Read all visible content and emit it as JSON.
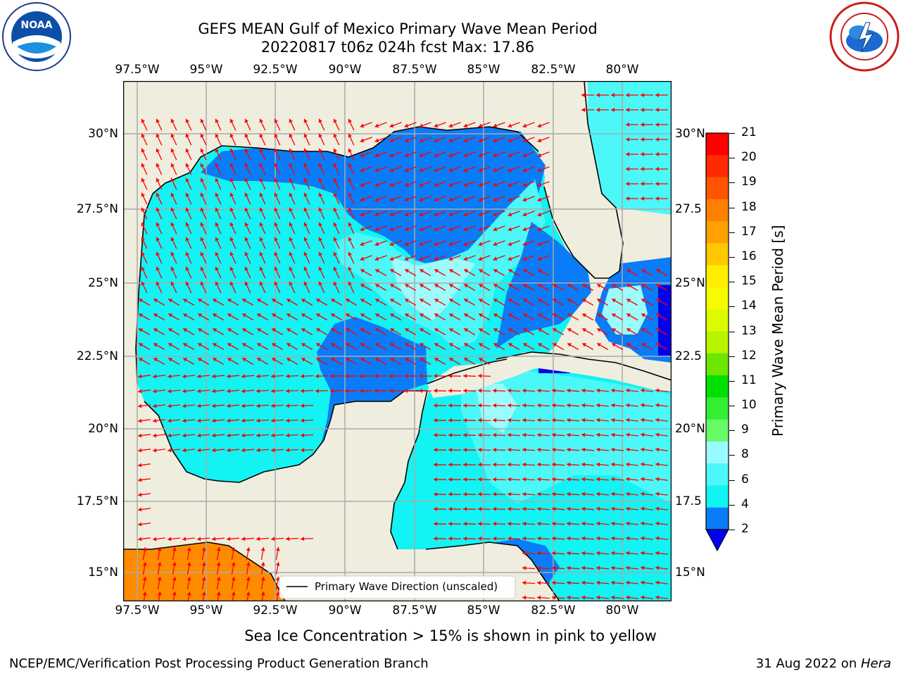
{
  "header": {
    "title_line1": "GEFS MEAN Gulf of Mexico Primary Wave Mean Period",
    "title_line2": "20220817 t06z 024h fcst   Max: 17.86"
  },
  "logos": {
    "left": "noaa-logo",
    "right": "national-weather-service-logo"
  },
  "map": {
    "lon_ticks": [
      "97.5°W",
      "95°W",
      "92.5°W",
      "90°W",
      "87.5°W",
      "85°W",
      "82.5°W",
      "80°W"
    ],
    "lat_ticks": [
      "30°N",
      "27.5°N",
      "25°N",
      "22.5°N",
      "20°N",
      "17.5°N",
      "15°N"
    ],
    "right_lat_ticks": [
      "30°N",
      "27.5",
      "25°N",
      "22.5",
      "20°N",
      "17.5",
      "15°N"
    ],
    "legend_label": "Primary Wave Direction (unscaled)",
    "colors": {
      "land": "#efedde",
      "band_2_4": "#0a7cf7",
      "band_4_6": "#13f3f3",
      "band_6_8": "#4cf7f7",
      "band_8_9": "#9cfbfb",
      "band_17_18": "#ff8c00",
      "arrow": "#ff0000",
      "grid": "#aaaaaa"
    }
  },
  "colorbar": {
    "labels": [
      "21",
      "20",
      "19",
      "18",
      "17",
      "16",
      "15",
      "14",
      "13",
      "12",
      "11",
      "10",
      "9",
      "8",
      "6",
      "4",
      "2"
    ],
    "colors": [
      "#ff0000",
      "#ff2a00",
      "#ff5500",
      "#ff7f00",
      "#ffa100",
      "#ffc800",
      "#ffee00",
      "#f6fb00",
      "#dcfa00",
      "#b8f400",
      "#6de600",
      "#00e000",
      "#33ee33",
      "#66fb66",
      "#99fbff",
      "#4cf7f7",
      "#13f3f3",
      "#0a7cf7",
      "#0000ee"
    ],
    "title": "Primary Wave Mean Period [s]"
  },
  "footer": {
    "note": "Sea Ice Concentration > 15% is shown in pink to yellow",
    "credit": "NCEP/EMC/Verification Post Processing Product Generation Branch",
    "date_prefix": "31 Aug 2022 on ",
    "machine": "Hera"
  }
}
